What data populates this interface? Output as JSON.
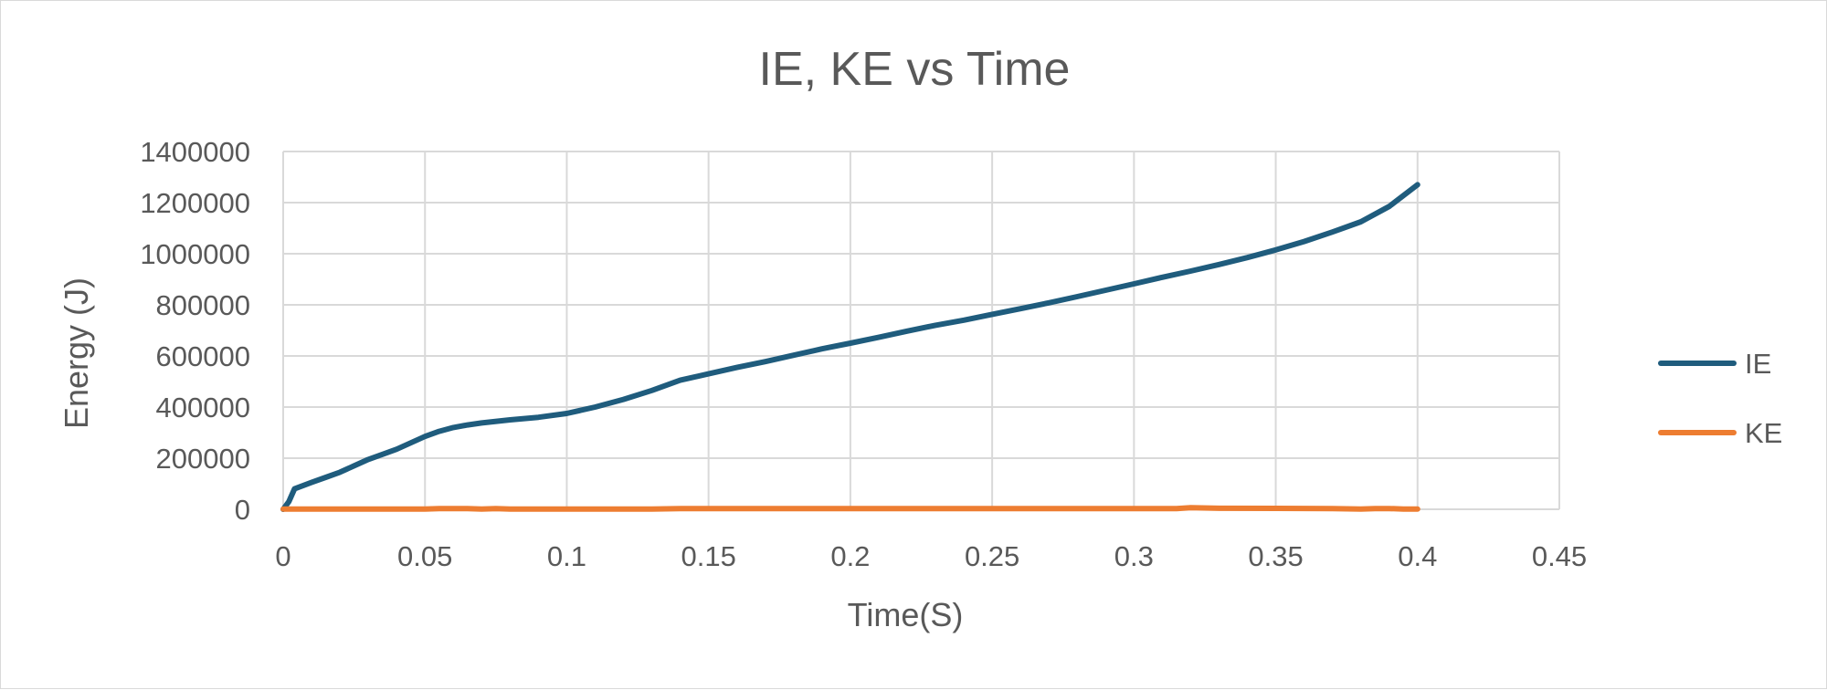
{
  "chart_data": {
    "type": "line",
    "title": "IE, KE vs Time",
    "xlabel": "Time(S)",
    "ylabel": "Energy (J)",
    "xlim": [
      0,
      0.45
    ],
    "ylim": [
      0,
      1400000
    ],
    "x_ticks": [
      "0",
      "0.05",
      "0.1",
      "0.15",
      "0.2",
      "0.25",
      "0.3",
      "0.35",
      "0.4",
      "0.45"
    ],
    "y_ticks": [
      "0",
      "200000",
      "400000",
      "600000",
      "800000",
      "1000000",
      "1200000",
      "1400000"
    ],
    "grid": true,
    "legend_position": "right",
    "series": [
      {
        "name": "IE",
        "color": "#1F5C7D",
        "points": [
          [
            0,
            0
          ],
          [
            0.002,
            30000
          ],
          [
            0.004,
            80000
          ],
          [
            0.01,
            105000
          ],
          [
            0.015,
            125000
          ],
          [
            0.02,
            145000
          ],
          [
            0.025,
            170000
          ],
          [
            0.03,
            195000
          ],
          [
            0.035,
            215000
          ],
          [
            0.04,
            235000
          ],
          [
            0.045,
            260000
          ],
          [
            0.05,
            285000
          ],
          [
            0.055,
            305000
          ],
          [
            0.06,
            320000
          ],
          [
            0.065,
            330000
          ],
          [
            0.07,
            338000
          ],
          [
            0.08,
            350000
          ],
          [
            0.09,
            360000
          ],
          [
            0.1,
            375000
          ],
          [
            0.11,
            400000
          ],
          [
            0.12,
            430000
          ],
          [
            0.13,
            465000
          ],
          [
            0.14,
            505000
          ],
          [
            0.15,
            530000
          ],
          [
            0.16,
            555000
          ],
          [
            0.17,
            578000
          ],
          [
            0.18,
            603000
          ],
          [
            0.19,
            628000
          ],
          [
            0.2,
            650000
          ],
          [
            0.21,
            673000
          ],
          [
            0.22,
            697000
          ],
          [
            0.23,
            720000
          ],
          [
            0.24,
            740000
          ],
          [
            0.25,
            763000
          ],
          [
            0.26,
            785000
          ],
          [
            0.27,
            808000
          ],
          [
            0.28,
            832000
          ],
          [
            0.29,
            857000
          ],
          [
            0.3,
            882000
          ],
          [
            0.31,
            908000
          ],
          [
            0.32,
            932000
          ],
          [
            0.33,
            958000
          ],
          [
            0.34,
            985000
          ],
          [
            0.35,
            1015000
          ],
          [
            0.36,
            1048000
          ],
          [
            0.37,
            1085000
          ],
          [
            0.38,
            1125000
          ],
          [
            0.39,
            1185000
          ],
          [
            0.4,
            1270000
          ]
        ]
      },
      {
        "name": "KE",
        "color": "#ED7D31",
        "points": [
          [
            0,
            1000
          ],
          [
            0.05,
            1000
          ],
          [
            0.055,
            3000
          ],
          [
            0.065,
            3000
          ],
          [
            0.07,
            1000
          ],
          [
            0.075,
            3000
          ],
          [
            0.08,
            1000
          ],
          [
            0.13,
            1000
          ],
          [
            0.14,
            3000
          ],
          [
            0.3,
            3000
          ],
          [
            0.315,
            3000
          ],
          [
            0.32,
            6000
          ],
          [
            0.33,
            4000
          ],
          [
            0.37,
            3000
          ],
          [
            0.38,
            1000
          ],
          [
            0.385,
            3000
          ],
          [
            0.39,
            3000
          ],
          [
            0.395,
            1000
          ],
          [
            0.4,
            1000
          ]
        ]
      }
    ]
  }
}
